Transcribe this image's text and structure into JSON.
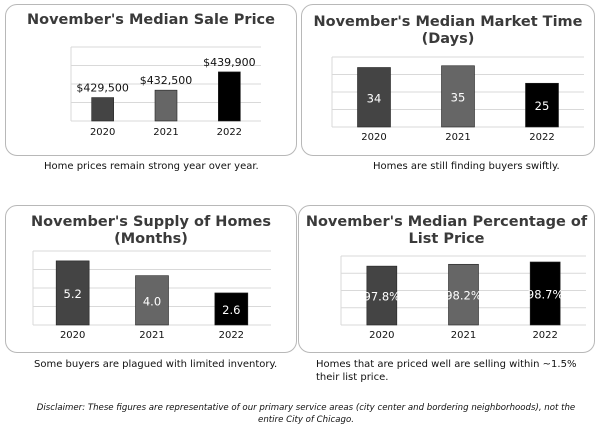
{
  "charts": [
    {
      "id": "price",
      "title": "November's Median Sale Price",
      "caption": "Home prices remain strong year over year.",
      "chart_data": {
        "type": "bar",
        "title": "November's Median Sale Price",
        "categories": [
          "2020",
          "2021",
          "2022"
        ],
        "values": [
          429500,
          432500,
          439900
        ],
        "value_labels": [
          "$429,500",
          "$432,500",
          "$439,900"
        ],
        "label_position": "above",
        "ylim": [
          420000,
          450000
        ],
        "grid": true,
        "colors": [
          "#444444",
          "#666666",
          "#000000"
        ]
      }
    },
    {
      "id": "market-time",
      "title": "November's Median Market Time (Days)",
      "caption": "Homes are still finding buyers swiftly.",
      "chart_data": {
        "type": "bar",
        "title": "November's Median Market Time (Days)",
        "categories": [
          "2020",
          "2021",
          "2022"
        ],
        "values": [
          34,
          35,
          25
        ],
        "value_labels": [
          "34",
          "35",
          "25"
        ],
        "label_position": "inside",
        "ylim": [
          0,
          40
        ],
        "grid": true,
        "colors": [
          "#444444",
          "#666666",
          "#000000"
        ]
      }
    },
    {
      "id": "supply",
      "title": "November's Supply of Homes (Months)",
      "caption": "Some buyers are plagued with limited inventory.",
      "chart_data": {
        "type": "bar",
        "title": "November's Supply of Homes (Months)",
        "categories": [
          "2020",
          "2021",
          "2022"
        ],
        "values": [
          5.2,
          4.0,
          2.6
        ],
        "value_labels": [
          "5.2",
          "4.0",
          "2.6"
        ],
        "label_position": "inside",
        "ylim": [
          0,
          6
        ],
        "grid": true,
        "colors": [
          "#444444",
          "#666666",
          "#000000"
        ]
      }
    },
    {
      "id": "list-price",
      "title": "November's Median Percentage of List Price",
      "caption": "Homes that are priced well are selling within ~1.5% their list price.",
      "chart_data": {
        "type": "bar",
        "title": "November's Median Percentage of List Price",
        "categories": [
          "2020",
          "2021",
          "2022"
        ],
        "values": [
          97.8,
          98.2,
          98.7
        ],
        "value_labels": [
          "97.8%",
          "98.2%",
          "98.7%"
        ],
        "label_position": "inside",
        "ylim": [
          85,
          100
        ],
        "grid": true,
        "colors": [
          "#444444",
          "#666666",
          "#000000"
        ]
      }
    }
  ],
  "disclaimer": "Disclaimer: These figures are representative of our primary service areas (city center and bordering neighborhoods), not the entire City of Chicago."
}
